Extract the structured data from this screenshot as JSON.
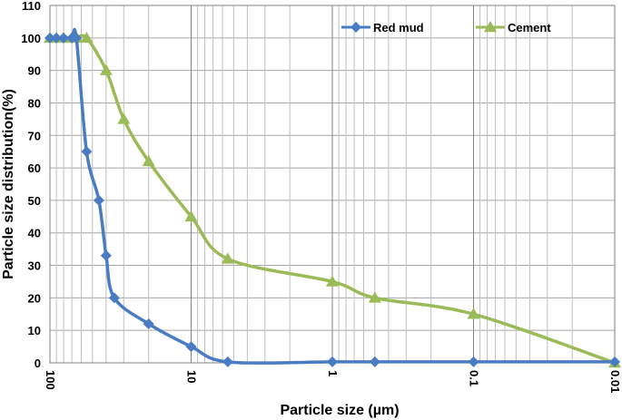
{
  "chart_data": {
    "type": "line",
    "xlabel": "Particle size (µm)",
    "ylabel": "Particle size distribution(%)",
    "x_scale": "log",
    "x_reversed": true,
    "xlim": [
      100,
      0.01
    ],
    "ylim": [
      0,
      110
    ],
    "x_ticks": [
      100,
      10,
      1,
      0.1,
      0.01
    ],
    "x_tick_labels": [
      "100",
      "10",
      "1",
      "0.1",
      "0.01"
    ],
    "y_ticks": [
      0,
      10,
      20,
      30,
      40,
      50,
      60,
      70,
      80,
      90,
      100,
      110
    ],
    "y_tick_labels": [
      "0",
      "10",
      "20",
      "30",
      "40",
      "50",
      "60",
      "70",
      "80",
      "90",
      "100",
      "110"
    ],
    "grid": true,
    "legend_position": "top-right",
    "series": [
      {
        "name": "Red mud",
        "color": "#4a7cc4",
        "marker": "diamond",
        "x": [
          100,
          90,
          80,
          70,
          65,
          55,
          45,
          40,
          35,
          20,
          10,
          5.5,
          1,
          0.5,
          0.1,
          0.01
        ],
        "y": [
          100,
          100,
          100,
          100,
          100,
          65,
          50,
          33,
          20,
          12,
          5,
          0.3,
          0.3,
          0.3,
          0.3,
          0.3
        ]
      },
      {
        "name": "Cement",
        "color": "#9bbb59",
        "marker": "triangle",
        "x": [
          100,
          90,
          80,
          70,
          65,
          55,
          40,
          30,
          20,
          10,
          5.5,
          1,
          0.5,
          0.1,
          0.01
        ],
        "y": [
          100,
          100,
          100,
          100,
          100,
          100,
          90,
          75,
          62,
          45,
          32,
          25,
          20,
          15,
          0
        ]
      }
    ]
  }
}
